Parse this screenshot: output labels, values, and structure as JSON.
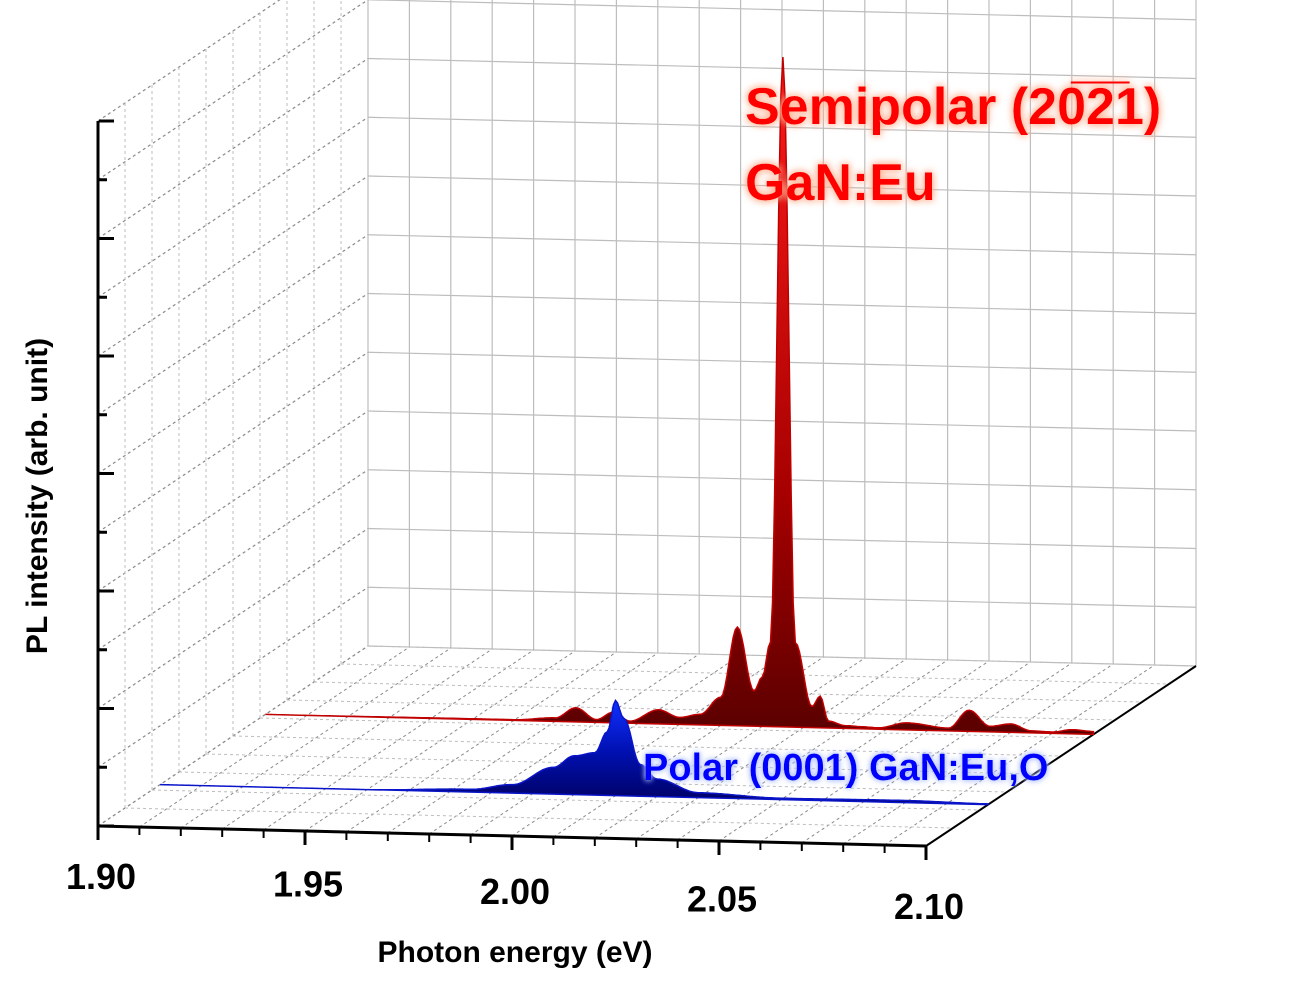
{
  "chart_data": {
    "type": "area",
    "view": "3d-waterfall",
    "xlabel": "Photon energy (eV)",
    "ylabel": "PL intensity (arb. unit)",
    "xlim": [
      1.9,
      2.1
    ],
    "ylim": [
      0,
      1
    ],
    "x_ticks": [
      "1.90",
      "1.95",
      "2.00",
      "2.05",
      "2.10"
    ],
    "grid": true,
    "series": [
      {
        "name": "Polar (0001) GaN:Eu,O",
        "color": "#0a14c8",
        "label_color": "#0000ff",
        "x": [
          1.9,
          1.95,
          1.975,
          1.985,
          1.995,
          2.0,
          2.005,
          2.008,
          2.01,
          2.012,
          2.016,
          2.02,
          2.03,
          2.05,
          2.08,
          2.1
        ],
        "y": [
          0.0,
          0.0,
          0.004,
          0.012,
          0.038,
          0.055,
          0.06,
          0.09,
          0.135,
          0.11,
          0.045,
          0.025,
          0.007,
          0.002,
          0.003,
          0.001
        ]
      },
      {
        "name": "Semipolar (20̅2̅1) GaN:Eu",
        "name_lines": [
          "Semipolar (20̅2̅1)",
          "GaN:Eu"
        ],
        "color": "#c00000",
        "label_color": "#ff0000",
        "x": [
          1.9,
          1.96,
          1.97,
          1.975,
          1.98,
          1.984,
          1.988,
          1.995,
          2.0,
          2.005,
          2.01,
          2.014,
          2.018,
          2.02,
          2.022,
          2.025,
          2.028,
          2.032,
          2.034,
          2.036,
          2.04,
          2.044,
          2.048,
          2.055,
          2.065,
          2.07,
          2.075,
          2.08,
          2.085,
          2.09,
          2.095,
          2.1
        ],
        "y": [
          0.0,
          0.001,
          0.005,
          0.02,
          0.004,
          0.015,
          0.003,
          0.02,
          0.01,
          0.015,
          0.04,
          0.14,
          0.05,
          0.07,
          0.12,
          0.95,
          0.12,
          0.03,
          0.045,
          0.01,
          0.004,
          0.003,
          0.002,
          0.01,
          0.004,
          0.03,
          0.008,
          0.012,
          0.003,
          0.002,
          0.006,
          0.004
        ]
      }
    ]
  }
}
